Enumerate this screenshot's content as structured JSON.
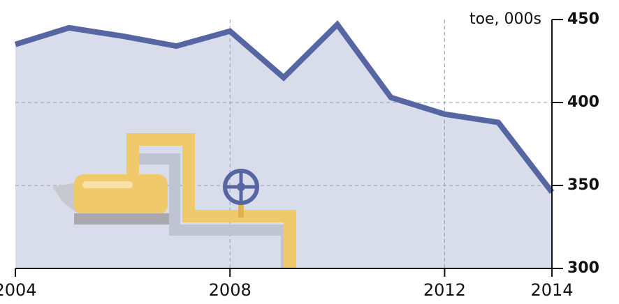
{
  "chart_data": {
    "type": "line",
    "y_axis_label": "toe, 000s",
    "x": [
      2004,
      2005,
      2006,
      2007,
      2008,
      2009,
      2010,
      2011,
      2012,
      2013,
      2014
    ],
    "series": [
      {
        "color": "#5566a2",
        "values": [
          435,
          445,
          440,
          434,
          443,
          415,
          447,
          403,
          393,
          388,
          346
        ]
      }
    ],
    "area_color": "#d9dcea",
    "xlim": [
      2004,
      2014
    ],
    "xticks": [
      2004,
      2008,
      2012,
      2014
    ],
    "ylim": [
      300,
      450
    ],
    "yticks": [
      300,
      350,
      400,
      450
    ],
    "grid": true,
    "y_axis_side": "right"
  }
}
